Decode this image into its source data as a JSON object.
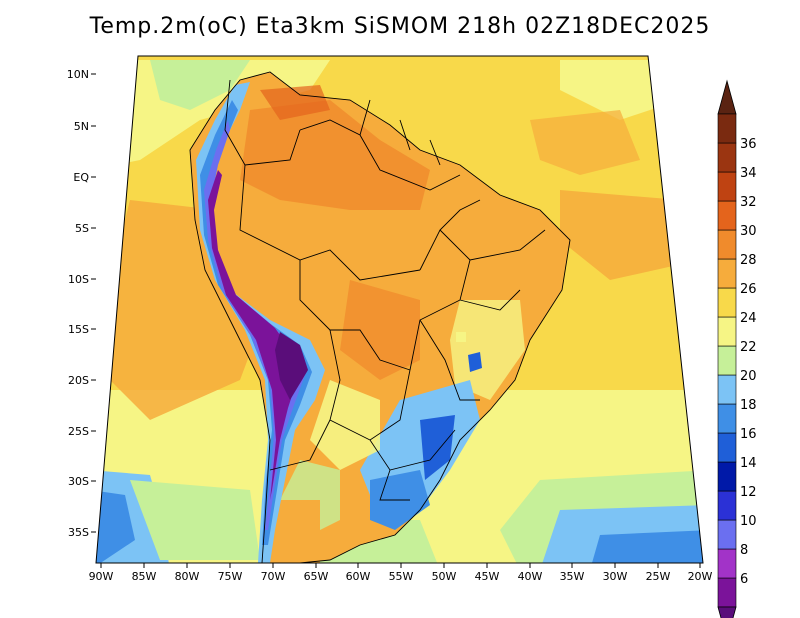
{
  "map": {
    "title": "Temp.2m(oC) Eta3km SiSMOM 218h 02Z18DEC2025",
    "variable": "Temperature at 2 m",
    "units": "oC",
    "lon_ticks": [
      "90W",
      "85W",
      "80W",
      "75W",
      "70W",
      "65W",
      "60W",
      "55W",
      "50W",
      "45W",
      "40W",
      "35W",
      "30W",
      "25W",
      "20W"
    ],
    "lat_ticks": [
      "10N",
      "5N",
      "EQ",
      "5S",
      "10S",
      "15S",
      "20S",
      "25S",
      "30S",
      "35S"
    ],
    "colorbar": {
      "labels": [
        "6",
        "8",
        "10",
        "12",
        "14",
        "16",
        "18",
        "20",
        "22",
        "24",
        "26",
        "28",
        "30",
        "32",
        "34",
        "36"
      ],
      "colors": [
        "#7b139a",
        "#a233c8",
        "#6b6ff0",
        "#2b31d6",
        "#0019a8",
        "#1f5fd8",
        "#3f8fe6",
        "#7cc3f5",
        "#c6f099",
        "#f6f585",
        "#f8d94a",
        "#f6ac3c",
        "#f08b2c",
        "#e4641c",
        "#bf4312",
        "#9b3511",
        "#7a2a10"
      ],
      "end_low": "#5a0d7a",
      "end_high": "#5a2312"
    },
    "colors": {
      "ocean_warm": "#f8d94a",
      "ocean_mid": "#f6f585",
      "ocean_cool": "#c6f099",
      "ocean_cold": "#7cc3f5",
      "land_hot": "#f08b2c",
      "andes": "#7b139a"
    }
  }
}
